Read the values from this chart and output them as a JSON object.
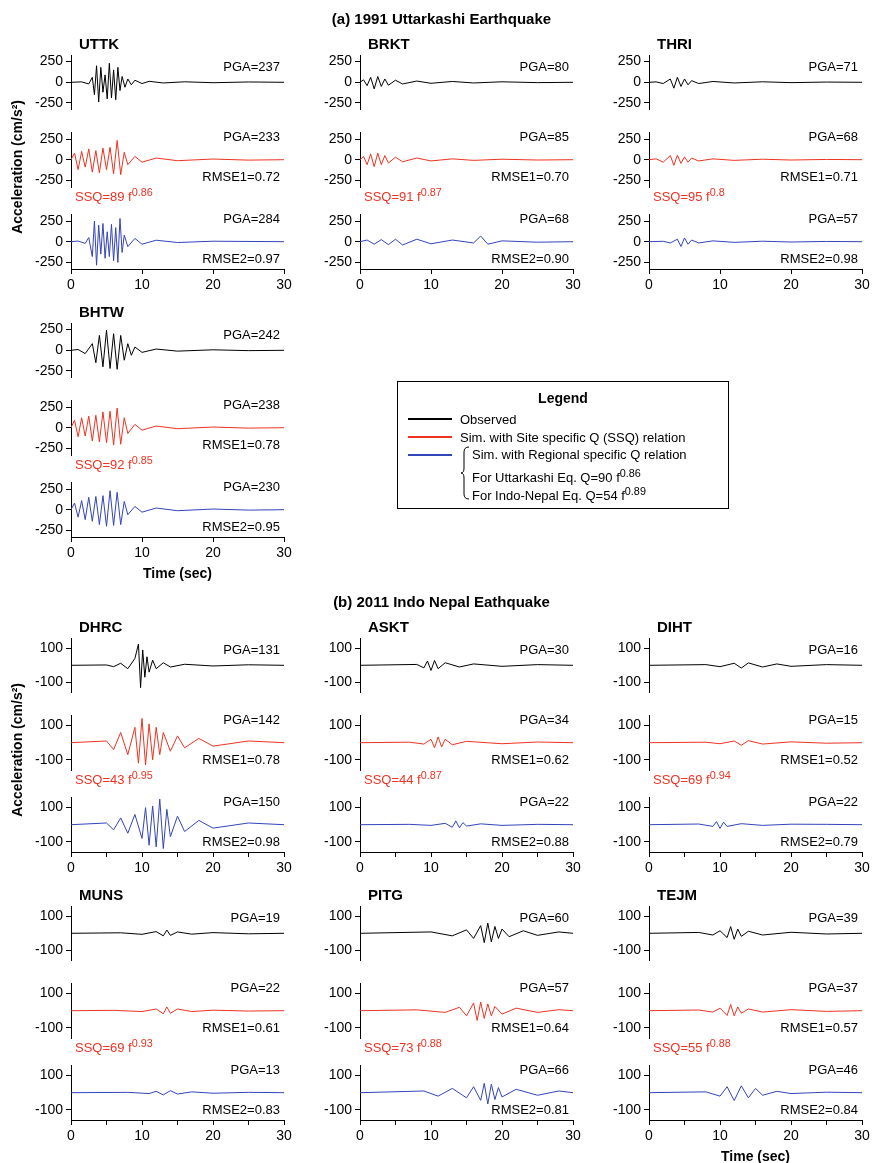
{
  "chart_data": [
    {
      "type": "other",
      "title": "(a) 1991 Uttarkashi Earthquake"
    },
    {
      "type": "line",
      "title": "UTTK",
      "x": [
        0,
        1.5,
        2.5,
        3,
        3.3,
        3.6,
        3.9,
        4.2,
        4.5,
        4.8,
        5.1,
        5.4,
        5.7,
        6,
        6.3,
        6.6,
        6.9,
        7.2,
        7.6,
        8,
        8.5,
        9,
        10,
        11,
        13,
        16,
        20,
        25,
        30
      ],
      "values": [
        0,
        5,
        -20,
        60,
        -150,
        200,
        -237,
        180,
        -120,
        90,
        -200,
        230,
        -190,
        150,
        -210,
        180,
        -100,
        70,
        -60,
        40,
        -30,
        25,
        -15,
        12,
        -8,
        6,
        -5,
        4,
        0
      ],
      "color": "#000000",
      "xlim": [
        0,
        30
      ],
      "xticks": [
        0,
        10,
        20,
        30
      ],
      "ylim": [
        -330,
        330
      ],
      "yticks": [
        -250,
        0,
        250
      ],
      "tick_labels": "y",
      "annotations": [
        "PGA=237"
      ]
    },
    {
      "type": "line",
      "ylabel": "Acceleration (cm/s²)",
      "x": [
        0,
        0.5,
        1,
        1.5,
        2,
        2.5,
        3,
        3.5,
        4,
        4.5,
        5,
        5.5,
        6,
        6.5,
        7,
        7.5,
        8,
        9,
        10,
        12,
        15,
        20,
        25,
        30
      ],
      "values": [
        0,
        80,
        -120,
        100,
        -90,
        130,
        -150,
        110,
        -160,
        140,
        -120,
        150,
        -170,
        233,
        -180,
        90,
        -60,
        40,
        -30,
        20,
        -12,
        8,
        -5,
        0
      ],
      "color": "#ee3322",
      "xlim": [
        0,
        30
      ],
      "xticks": [
        0,
        10,
        20,
        30
      ],
      "ylim": [
        -330,
        330
      ],
      "yticks": [
        -250,
        0,
        250
      ],
      "tick_labels": "y",
      "annotations": [
        "PGA=233",
        "RMSE1=0.72",
        "SSQ=89 f$^{0.86}$"
      ]
    },
    {
      "type": "line",
      "x": [
        0,
        1,
        2,
        2.5,
        3,
        3.3,
        3.6,
        3.9,
        4.2,
        4.5,
        4.8,
        5.1,
        5.4,
        5.7,
        6,
        6.3,
        6.6,
        6.9,
        7.2,
        7.5,
        8,
        9,
        10,
        12,
        15,
        20,
        30
      ],
      "values": [
        0,
        8,
        -20,
        50,
        -180,
        250,
        -284,
        200,
        -150,
        220,
        -200,
        120,
        -180,
        210,
        -230,
        170,
        -250,
        280,
        -130,
        80,
        -60,
        40,
        -30,
        18,
        -10,
        6,
        0
      ],
      "color": "#3344bb",
      "xlim": [
        0,
        30
      ],
      "xticks": [
        0,
        10,
        20,
        30
      ],
      "ylim": [
        -330,
        330
      ],
      "yticks": [
        -250,
        0,
        250
      ],
      "annotations": [
        "PGA=284",
        "RMSE2=0.97"
      ]
    },
    {
      "type": "line",
      "title": "BRKT",
      "x": [
        0,
        0.5,
        1,
        1.5,
        2,
        2.5,
        3,
        3.5,
        4,
        5,
        6,
        8,
        10,
        13,
        16,
        20,
        25,
        30
      ],
      "values": [
        0,
        30,
        -40,
        60,
        -80,
        70,
        -50,
        40,
        -35,
        25,
        -20,
        15,
        -12,
        10,
        -8,
        6,
        -4,
        0
      ],
      "color": "#000000",
      "xlim": [
        0,
        30
      ],
      "xticks": [
        0,
        10,
        20,
        30
      ],
      "ylim": [
        -330,
        330
      ],
      "yticks": [
        -250,
        0,
        250
      ],
      "tick_labels": "y",
      "annotations": [
        "PGA=80"
      ]
    },
    {
      "type": "line",
      "x": [
        0,
        0.5,
        1,
        1.5,
        2,
        2.5,
        3,
        3.5,
        4,
        5,
        6,
        8,
        10,
        13,
        16,
        20,
        25,
        30
      ],
      "values": [
        0,
        40,
        -60,
        70,
        -85,
        80,
        -60,
        50,
        -40,
        30,
        -25,
        20,
        -15,
        10,
        -8,
        6,
        -4,
        0
      ],
      "color": "#ee3322",
      "xlim": [
        0,
        30
      ],
      "xticks": [
        0,
        10,
        20,
        30
      ],
      "ylim": [
        -330,
        330
      ],
      "yticks": [
        -250,
        0,
        250
      ],
      "tick_labels": "y",
      "annotations": [
        "PGA=85",
        "RMSE1=0.70",
        "SSQ=91 f$^{0.87}$"
      ]
    },
    {
      "type": "line",
      "x": [
        0,
        1,
        2,
        3,
        4,
        5,
        6,
        8,
        10,
        13,
        16,
        17,
        18,
        20,
        25,
        30
      ],
      "values": [
        0,
        20,
        -30,
        25,
        -35,
        30,
        -40,
        30,
        -25,
        20,
        -15,
        68,
        -30,
        10,
        -6,
        0
      ],
      "color": "#3344bb",
      "xlim": [
        0,
        30
      ],
      "xticks": [
        0,
        10,
        20,
        30
      ],
      "ylim": [
        -330,
        330
      ],
      "yticks": [
        -250,
        0,
        250
      ],
      "annotations": [
        "PGA=68",
        "RMSE2=0.90"
      ]
    },
    {
      "type": "line",
      "title": "THRI",
      "x": [
        0,
        1,
        2,
        3,
        3.5,
        4,
        4.5,
        5,
        5.5,
        6,
        7,
        9,
        12,
        16,
        20,
        25,
        30
      ],
      "values": [
        0,
        5,
        -15,
        40,
        -71,
        60,
        -50,
        40,
        -30,
        20,
        -15,
        10,
        -8,
        6,
        -4,
        3,
        0
      ],
      "color": "#000000",
      "xlim": [
        0,
        30
      ],
      "xticks": [
        0,
        10,
        20,
        30
      ],
      "ylim": [
        -330,
        330
      ],
      "yticks": [
        -250,
        0,
        250
      ],
      "tick_labels": "y",
      "annotations": [
        "PGA=71"
      ]
    },
    {
      "type": "line",
      "x": [
        0,
        1,
        2,
        3,
        3.5,
        4,
        4.5,
        5,
        5.5,
        6,
        7,
        9,
        12,
        16,
        20,
        25,
        30
      ],
      "values": [
        0,
        10,
        -30,
        50,
        -68,
        55,
        -45,
        35,
        -30,
        20,
        -15,
        10,
        -8,
        6,
        -4,
        3,
        0
      ],
      "color": "#ee3322",
      "xlim": [
        0,
        30
      ],
      "xticks": [
        0,
        10,
        20,
        30
      ],
      "ylim": [
        -330,
        330
      ],
      "yticks": [
        -250,
        0,
        250
      ],
      "tick_labels": "y",
      "annotations": [
        "PGA=68",
        "RMSE1=0.71",
        "SSQ=95 f$^{0.8}$"
      ]
    },
    {
      "type": "line",
      "x": [
        0,
        2,
        3,
        4,
        4.5,
        5,
        5.5,
        6,
        7,
        9,
        12,
        16,
        20,
        25,
        30
      ],
      "values": [
        0,
        5,
        -15,
        30,
        -57,
        45,
        -30,
        20,
        -15,
        10,
        -8,
        6,
        -4,
        3,
        0
      ],
      "color": "#3344bb",
      "xlim": [
        0,
        30
      ],
      "xticks": [
        0,
        10,
        20,
        30
      ],
      "ylim": [
        -330,
        330
      ],
      "yticks": [
        -250,
        0,
        250
      ],
      "annotations": [
        "PGA=57",
        "RMSE2=0.98"
      ]
    },
    {
      "type": "line",
      "title": "BHTW",
      "x": [
        0,
        1,
        2,
        3,
        3.5,
        4,
        4.5,
        5,
        5.5,
        6,
        6.5,
        7,
        7.5,
        8,
        8.5,
        9,
        10,
        12,
        15,
        20,
        25,
        30
      ],
      "values": [
        0,
        10,
        -40,
        80,
        -150,
        180,
        -200,
        242,
        -220,
        200,
        -230,
        180,
        -120,
        80,
        -60,
        40,
        -25,
        15,
        -10,
        6,
        -4,
        0
      ],
      "color": "#000000",
      "xlim": [
        0,
        30
      ],
      "xticks": [
        0,
        10,
        20,
        30
      ],
      "ylim": [
        -330,
        330
      ],
      "yticks": [
        -250,
        0,
        250
      ],
      "tick_labels": "y",
      "annotations": [
        "PGA=242"
      ]
    },
    {
      "type": "line",
      "x": [
        0,
        0.5,
        1,
        1.5,
        2,
        2.5,
        3,
        3.5,
        4,
        4.5,
        5,
        5.5,
        6,
        6.5,
        7,
        7.5,
        8,
        9,
        10,
        12,
        15,
        20,
        25,
        30
      ],
      "values": [
        0,
        90,
        -110,
        120,
        -100,
        140,
        -160,
        150,
        -170,
        190,
        -180,
        200,
        -210,
        238,
        -200,
        120,
        -70,
        40,
        -30,
        20,
        -12,
        8,
        -5,
        0
      ],
      "color": "#ee3322",
      "xlim": [
        0,
        30
      ],
      "xticks": [
        0,
        10,
        20,
        30
      ],
      "ylim": [
        -330,
        330
      ],
      "yticks": [
        -250,
        0,
        250
      ],
      "tick_labels": "y",
      "annotations": [
        "PGA=238",
        "RMSE1=0.78",
        "SSQ=92 f$^{0.85}$"
      ]
    },
    {
      "type": "line",
      "xlabel": "Time (sec)",
      "x": [
        0,
        0.5,
        1,
        1.5,
        2,
        2.5,
        3,
        3.5,
        4,
        4.5,
        5,
        5.5,
        6,
        6.5,
        7,
        7.5,
        8,
        9,
        10,
        12,
        15,
        20,
        25,
        30
      ],
      "values": [
        0,
        80,
        -90,
        110,
        -120,
        150,
        -140,
        160,
        -180,
        170,
        -200,
        230,
        -190,
        210,
        -180,
        100,
        -60,
        40,
        -30,
        20,
        -12,
        8,
        -5,
        0
      ],
      "color": "#3344bb",
      "xlim": [
        0,
        30
      ],
      "xticks": [
        0,
        10,
        20,
        30
      ],
      "ylim": [
        -330,
        330
      ],
      "yticks": [
        -250,
        0,
        250
      ],
      "annotations": [
        "PGA=230",
        "RMSE2=0.95"
      ]
    },
    {
      "type": "other",
      "title": "Legend",
      "series": [
        {
          "name": "Observed",
          "color": "#000000"
        },
        {
          "name": "Sim. with Site specific Q (SSQ) relation",
          "color": "#ee3322"
        },
        {
          "name": "Sim. with Regional specific Q relation",
          "color": "#3344bb"
        }
      ],
      "annotations": [
        "For Uttarkashi Eq. Q=90 f$^{0.86}$",
        "For Indo-Nepal Eq. Q=54 f$^{0.89}$"
      ]
    },
    {
      "type": "other",
      "title": "(b) 2011 Indo Nepal Eathquake"
    },
    {
      "type": "line",
      "title": "DHRC",
      "x": [
        0,
        5,
        6,
        7,
        8,
        9,
        9.5,
        9.8,
        10.1,
        10.4,
        10.7,
        11,
        11.5,
        12,
        13,
        14,
        16,
        20,
        25,
        30
      ],
      "values": [
        0,
        2,
        -8,
        12,
        -20,
        40,
        125,
        -131,
        90,
        -70,
        50,
        -40,
        30,
        -20,
        15,
        -10,
        6,
        -4,
        3,
        0
      ],
      "color": "#000000",
      "xlim": [
        0,
        30
      ],
      "xticks": [
        0,
        10,
        20,
        30
      ],
      "ylim": [
        -160,
        160
      ],
      "yticks": [
        -100,
        100
      ],
      "tick_labels": "y",
      "annotations": [
        "PGA=131"
      ]
    },
    {
      "type": "line",
      "ylabel": "Acceleration (cm/s²)",
      "x": [
        0,
        5,
        6,
        7,
        8,
        9,
        9.5,
        10,
        10.5,
        11,
        11.5,
        12,
        12.5,
        13,
        14,
        15,
        16,
        18,
        20,
        25,
        30
      ],
      "values": [
        0,
        10,
        -40,
        60,
        -70,
        90,
        -120,
        142,
        -130,
        110,
        -100,
        90,
        -70,
        60,
        -50,
        40,
        -30,
        25,
        -20,
        10,
        0
      ],
      "color": "#ee3322",
      "xlim": [
        0,
        30
      ],
      "xticks": [
        0,
        10,
        20,
        30
      ],
      "ylim": [
        -160,
        160
      ],
      "yticks": [
        -100,
        100
      ],
      "tick_labels": "y",
      "annotations": [
        "PGA=142",
        "RMSE1=0.78",
        "SSQ=43 f$^{0.95}$"
      ]
    },
    {
      "type": "line",
      "x": [
        0,
        5,
        6,
        7,
        8,
        9,
        10,
        10.5,
        11,
        11.5,
        12,
        12.5,
        13,
        13.5,
        14,
        15,
        16,
        18,
        20,
        25,
        30
      ],
      "values": [
        0,
        10,
        -30,
        40,
        -50,
        60,
        -80,
        100,
        -120,
        110,
        -130,
        150,
        -140,
        90,
        -70,
        50,
        -40,
        25,
        -20,
        10,
        0
      ],
      "color": "#3344bb",
      "xlim": [
        0,
        30
      ],
      "xticks": [
        0,
        {
          "value": 5,
          "label": null
        },
        10,
        {
          "value": 15,
          "label": null
        },
        20,
        {
          "value": 25,
          "label": null
        },
        30
      ],
      "ylim": [
        -160,
        160
      ],
      "yticks": [
        -100,
        100
      ],
      "annotations": [
        "PGA=150",
        "RMSE2=0.98"
      ]
    },
    {
      "type": "line",
      "title": "ASKT",
      "x": [
        0,
        8,
        9,
        9.5,
        10,
        10.5,
        11,
        12,
        14,
        16,
        20,
        25,
        30
      ],
      "values": [
        0,
        5,
        -15,
        25,
        -30,
        28,
        -20,
        15,
        -10,
        8,
        -6,
        4,
        0
      ],
      "color": "#000000",
      "xlim": [
        0,
        30
      ],
      "xticks": [
        0,
        10,
        20,
        30
      ],
      "ylim": [
        -160,
        160
      ],
      "yticks": [
        -100,
        100
      ],
      "tick_labels": "y",
      "annotations": [
        "PGA=30"
      ]
    },
    {
      "type": "line",
      "x": [
        0,
        7,
        9,
        10,
        10.5,
        11,
        11.5,
        12,
        13,
        15,
        20,
        25,
        30
      ],
      "values": [
        0,
        3,
        -8,
        20,
        -30,
        34,
        -25,
        20,
        -12,
        8,
        -6,
        4,
        0
      ],
      "color": "#ee3322",
      "xlim": [
        0,
        30
      ],
      "xticks": [
        0,
        10,
        20,
        30
      ],
      "ylim": [
        -160,
        160
      ],
      "yticks": [
        -100,
        100
      ],
      "tick_labels": "y",
      "annotations": [
        "PGA=34",
        "RMSE1=0.62",
        "SSQ=44 f$^{0.87}$"
      ]
    },
    {
      "type": "line",
      "x": [
        0,
        7,
        10,
        12,
        13,
        13.5,
        14,
        14.5,
        15,
        17,
        20,
        25,
        30
      ],
      "values": [
        0,
        2,
        -4,
        8,
        -15,
        22,
        -18,
        12,
        -8,
        5,
        -4,
        2,
        0
      ],
      "color": "#3344bb",
      "xlim": [
        0,
        30
      ],
      "xticks": [
        0,
        {
          "value": 5,
          "label": null
        },
        10,
        {
          "value": 15,
          "label": null
        },
        20,
        {
          "value": 25,
          "label": null
        },
        30
      ],
      "ylim": [
        -160,
        160
      ],
      "yticks": [
        -100,
        100
      ],
      "annotations": [
        "PGA=22",
        "RMSE2=0.88"
      ]
    },
    {
      "type": "line",
      "title": "DIHT",
      "x": [
        0,
        8,
        10,
        12,
        13,
        14,
        16,
        18,
        20,
        25,
        30
      ],
      "values": [
        0,
        4,
        -8,
        12,
        -16,
        14,
        -10,
        8,
        -6,
        4,
        0
      ],
      "color": "#000000",
      "xlim": [
        0,
        30
      ],
      "xticks": [
        0,
        10,
        20,
        30
      ],
      "ylim": [
        -160,
        160
      ],
      "yticks": [
        -100,
        100
      ],
      "tick_labels": "y",
      "annotations": [
        "PGA=16"
      ]
    },
    {
      "type": "line",
      "x": [
        0,
        8,
        10,
        12,
        13,
        14,
        16,
        20,
        25,
        30
      ],
      "values": [
        0,
        3,
        -6,
        10,
        -15,
        12,
        -8,
        5,
        -3,
        0
      ],
      "color": "#ee3322",
      "xlim": [
        0,
        30
      ],
      "xticks": [
        0,
        10,
        20,
        30
      ],
      "ylim": [
        -160,
        160
      ],
      "yticks": [
        -100,
        100
      ],
      "tick_labels": "y",
      "annotations": [
        "PGA=15",
        "RMSE1=0.52",
        "SSQ=69 f$^{0.94}$"
      ]
    },
    {
      "type": "line",
      "x": [
        0,
        7,
        9,
        9.5,
        10,
        10.5,
        11,
        13,
        16,
        20,
        25,
        30
      ],
      "values": [
        0,
        4,
        -10,
        18,
        -22,
        15,
        -10,
        6,
        -4,
        3,
        2,
        0
      ],
      "color": "#3344bb",
      "xlim": [
        0,
        30
      ],
      "xticks": [
        0,
        {
          "value": 5,
          "label": null
        },
        10,
        {
          "value": 15,
          "label": null
        },
        20,
        {
          "value": 25,
          "label": null
        },
        30
      ],
      "ylim": [
        -160,
        160
      ],
      "yticks": [
        -100,
        100
      ],
      "annotations": [
        "PGA=22",
        "RMSE2=0.79"
      ]
    },
    {
      "type": "line",
      "title": "MUNS",
      "x": [
        0,
        7,
        10,
        12,
        13,
        13.5,
        14,
        15,
        17,
        20,
        25,
        30
      ],
      "values": [
        0,
        3,
        -6,
        10,
        -15,
        19,
        -12,
        8,
        -5,
        4,
        -3,
        0
      ],
      "color": "#000000",
      "xlim": [
        0,
        30
      ],
      "xticks": [
        0,
        10,
        20,
        30
      ],
      "ylim": [
        -160,
        160
      ],
      "yticks": [
        -100,
        100
      ],
      "tick_labels": "y",
      "annotations": [
        "PGA=19"
      ]
    },
    {
      "type": "line",
      "x": [
        0,
        6,
        10,
        12,
        13,
        13.5,
        14,
        15,
        17,
        20,
        25,
        30
      ],
      "values": [
        0,
        2,
        -5,
        10,
        -18,
        22,
        -15,
        10,
        -5,
        3,
        -2,
        0
      ],
      "color": "#ee3322",
      "xlim": [
        0,
        30
      ],
      "xticks": [
        0,
        10,
        20,
        30
      ],
      "ylim": [
        -160,
        160
      ],
      "yticks": [
        -100,
        100
      ],
      "tick_labels": "y",
      "annotations": [
        "PGA=22",
        "RMSE1=0.61",
        "SSQ=69 f$^{0.93}$"
      ]
    },
    {
      "type": "line",
      "x": [
        0,
        8,
        11,
        12,
        13,
        14,
        15,
        17,
        20,
        25,
        30
      ],
      "values": [
        0,
        2,
        -5,
        8,
        -13,
        12,
        -8,
        5,
        -3,
        2,
        0
      ],
      "color": "#3344bb",
      "xlim": [
        0,
        30
      ],
      "xticks": [
        0,
        {
          "value": 5,
          "label": null
        },
        10,
        {
          "value": 15,
          "label": null
        },
        20,
        {
          "value": 25,
          "label": null
        },
        30
      ],
      "ylim": [
        -160,
        160
      ],
      "yticks": [
        -100,
        100
      ],
      "annotations": [
        "PGA=13",
        "RMSE2=0.83"
      ]
    },
    {
      "type": "line",
      "title": "PITG",
      "x": [
        0,
        10,
        13,
        15,
        16,
        17,
        17.5,
        18,
        18.5,
        19,
        19.5,
        20,
        21,
        23,
        25,
        28,
        30
      ],
      "values": [
        0,
        8,
        -15,
        20,
        -30,
        45,
        -55,
        60,
        -50,
        40,
        -30,
        25,
        -20,
        15,
        -12,
        8,
        0
      ],
      "color": "#000000",
      "xlim": [
        0,
        30
      ],
      "xticks": [
        0,
        10,
        20,
        30
      ],
      "ylim": [
        -160,
        160
      ],
      "yticks": [
        -100,
        100
      ],
      "tick_labels": "y",
      "annotations": [
        "PGA=60"
      ]
    },
    {
      "type": "line",
      "x": [
        0,
        8,
        12,
        14,
        15,
        16,
        16.5,
        17,
        17.5,
        18,
        18.5,
        19,
        20,
        22,
        25,
        28,
        30
      ],
      "values": [
        0,
        5,
        -10,
        20,
        -30,
        45,
        -57,
        50,
        -45,
        40,
        -30,
        25,
        -20,
        15,
        -10,
        6,
        0
      ],
      "color": "#ee3322",
      "xlim": [
        0,
        30
      ],
      "xticks": [
        0,
        10,
        20,
        30
      ],
      "ylim": [
        -160,
        160
      ],
      "yticks": [
        -100,
        100
      ],
      "tick_labels": "y",
      "annotations": [
        "PGA=57",
        "RMSE1=0.64",
        "SSQ=73 f$^{0.88}$"
      ]
    },
    {
      "type": "line",
      "x": [
        0,
        9,
        11,
        13,
        15,
        16,
        17,
        17.5,
        18,
        18.5,
        19,
        19.5,
        20,
        22,
        25,
        28,
        30
      ],
      "values": [
        0,
        10,
        -20,
        25,
        -30,
        35,
        -45,
        55,
        -66,
        50,
        -40,
        30,
        -25,
        20,
        -15,
        10,
        0
      ],
      "color": "#3344bb",
      "xlim": [
        0,
        30
      ],
      "xticks": [
        0,
        {
          "value": 5,
          "label": null
        },
        10,
        {
          "value": 15,
          "label": null
        },
        20,
        {
          "value": 25,
          "label": null
        },
        30
      ],
      "ylim": [
        -160,
        160
      ],
      "yticks": [
        -100,
        100
      ],
      "annotations": [
        "PGA=66",
        "RMSE2=0.81"
      ]
    },
    {
      "type": "line",
      "title": "TEJM",
      "x": [
        0,
        7,
        9,
        10,
        11,
        11.5,
        12,
        12.5,
        13,
        14,
        16,
        20,
        25,
        30
      ],
      "values": [
        0,
        5,
        -10,
        15,
        -25,
        39,
        -35,
        25,
        -18,
        12,
        -10,
        6,
        -4,
        0
      ],
      "color": "#000000",
      "xlim": [
        0,
        30
      ],
      "xticks": [
        0,
        10,
        20,
        30
      ],
      "ylim": [
        -160,
        160
      ],
      "yticks": [
        -100,
        100
      ],
      "tick_labels": "y",
      "annotations": [
        "PGA=39"
      ]
    },
    {
      "type": "line",
      "x": [
        0,
        7,
        9,
        10,
        11,
        11.5,
        12,
        12.5,
        13,
        14,
        16,
        20,
        25,
        30
      ],
      "values": [
        0,
        4,
        -8,
        15,
        -28,
        37,
        -30,
        22,
        -15,
        10,
        -8,
        6,
        -4,
        0
      ],
      "color": "#ee3322",
      "xlim": [
        0,
        30
      ],
      "xticks": [
        0,
        10,
        20,
        30
      ],
      "ylim": [
        -160,
        160
      ],
      "yticks": [
        -100,
        100
      ],
      "tick_labels": "y",
      "annotations": [
        "PGA=37",
        "RMSE1=0.57",
        "SSQ=55 f$^{0.88}$"
      ]
    },
    {
      "type": "line",
      "xlabel": "Time (sec)",
      "x": [
        0,
        8,
        10,
        11,
        12,
        13,
        14,
        15,
        16,
        18,
        20,
        25,
        30
      ],
      "values": [
        0,
        5,
        -20,
        35,
        -46,
        40,
        -30,
        25,
        -15,
        8,
        -5,
        3,
        0
      ],
      "color": "#3344bb",
      "xlim": [
        0,
        30
      ],
      "xticks": [
        0,
        {
          "value": 5,
          "label": null
        },
        10,
        {
          "value": 15,
          "label": null
        },
        20,
        {
          "value": 25,
          "label": null
        },
        30
      ],
      "ylim": [
        -160,
        160
      ],
      "yticks": [
        -100,
        100
      ],
      "annotations": [
        "PGA=46",
        "RMSE2=0.84"
      ]
    }
  ]
}
